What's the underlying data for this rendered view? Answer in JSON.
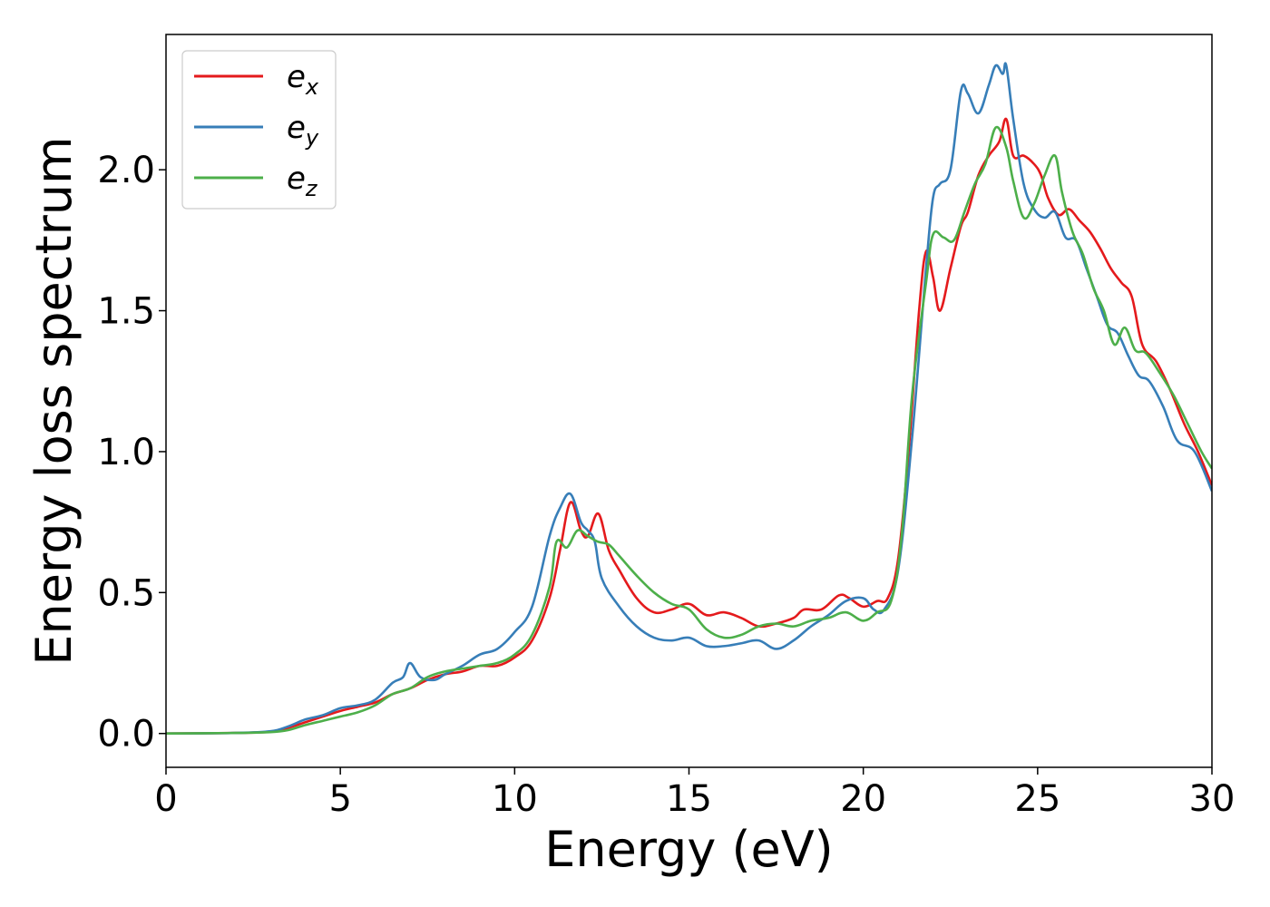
{
  "chart_data": {
    "type": "line",
    "title": "",
    "xlabel": "Energy (eV)",
    "ylabel": "Energy loss spectrum",
    "xlim": [
      0,
      30
    ],
    "ylim": [
      -0.12,
      2.48
    ],
    "xticks": [
      0,
      5,
      10,
      15,
      20,
      25,
      30
    ],
    "yticks": [
      0.0,
      0.5,
      1.0,
      1.5,
      2.0
    ],
    "xtick_labels": [
      "0",
      "5",
      "10",
      "15",
      "20",
      "25",
      "30"
    ],
    "ytick_labels": [
      "0.0",
      "0.5",
      "1.0",
      "1.5",
      "2.0"
    ],
    "grid": false,
    "legend_position": "top-left",
    "series": [
      {
        "name": "e_x",
        "label_base": "e",
        "label_sub": "x",
        "color": "#e41a1c",
        "points": [
          [
            0,
            0
          ],
          [
            2,
            0.002
          ],
          [
            3,
            0.006
          ],
          [
            3.5,
            0.02
          ],
          [
            4,
            0.04
          ],
          [
            4.5,
            0.06
          ],
          [
            5,
            0.08
          ],
          [
            5.5,
            0.095
          ],
          [
            6,
            0.11
          ],
          [
            6.5,
            0.14
          ],
          [
            7,
            0.16
          ],
          [
            7.5,
            0.19
          ],
          [
            8,
            0.21
          ],
          [
            8.5,
            0.22
          ],
          [
            9,
            0.24
          ],
          [
            9.5,
            0.24
          ],
          [
            10,
            0.27
          ],
          [
            10.5,
            0.33
          ],
          [
            11,
            0.48
          ],
          [
            11.3,
            0.65
          ],
          [
            11.6,
            0.82
          ],
          [
            11.9,
            0.72
          ],
          [
            12.1,
            0.7
          ],
          [
            12.4,
            0.78
          ],
          [
            12.7,
            0.65
          ],
          [
            13,
            0.58
          ],
          [
            13.5,
            0.48
          ],
          [
            14,
            0.43
          ],
          [
            14.5,
            0.44
          ],
          [
            15,
            0.46
          ],
          [
            15.5,
            0.42
          ],
          [
            16,
            0.43
          ],
          [
            16.5,
            0.41
          ],
          [
            17,
            0.38
          ],
          [
            17.5,
            0.39
          ],
          [
            18,
            0.41
          ],
          [
            18.3,
            0.44
          ],
          [
            18.8,
            0.44
          ],
          [
            19.3,
            0.49
          ],
          [
            19.6,
            0.48
          ],
          [
            20,
            0.45
          ],
          [
            20.4,
            0.47
          ],
          [
            20.7,
            0.48
          ],
          [
            21,
            0.62
          ],
          [
            21.3,
            1.0
          ],
          [
            21.6,
            1.5
          ],
          [
            21.8,
            1.71
          ],
          [
            22,
            1.62
          ],
          [
            22.2,
            1.5
          ],
          [
            22.5,
            1.65
          ],
          [
            22.8,
            1.8
          ],
          [
            23,
            1.85
          ],
          [
            23.3,
            1.98
          ],
          [
            23.6,
            2.05
          ],
          [
            23.9,
            2.1
          ],
          [
            24.1,
            2.18
          ],
          [
            24.3,
            2.05
          ],
          [
            24.6,
            2.05
          ],
          [
            24.9,
            2.02
          ],
          [
            25.1,
            1.98
          ],
          [
            25.3,
            1.9
          ],
          [
            25.6,
            1.84
          ],
          [
            25.9,
            1.86
          ],
          [
            26.2,
            1.82
          ],
          [
            26.5,
            1.78
          ],
          [
            26.8,
            1.72
          ],
          [
            27.1,
            1.65
          ],
          [
            27.4,
            1.6
          ],
          [
            27.7,
            1.55
          ],
          [
            28,
            1.38
          ],
          [
            28.4,
            1.32
          ],
          [
            28.8,
            1.22
          ],
          [
            29.2,
            1.1
          ],
          [
            29.6,
            1.0
          ],
          [
            30,
            0.88
          ]
        ]
      },
      {
        "name": "e_y",
        "label_base": "e",
        "label_sub": "y",
        "color": "#377eb8",
        "points": [
          [
            0,
            0
          ],
          [
            2,
            0.002
          ],
          [
            3,
            0.008
          ],
          [
            3.5,
            0.025
          ],
          [
            4,
            0.05
          ],
          [
            4.5,
            0.065
          ],
          [
            5,
            0.09
          ],
          [
            5.5,
            0.1
          ],
          [
            6,
            0.12
          ],
          [
            6.5,
            0.18
          ],
          [
            6.8,
            0.2
          ],
          [
            7,
            0.25
          ],
          [
            7.3,
            0.2
          ],
          [
            7.7,
            0.19
          ],
          [
            8,
            0.21
          ],
          [
            8.5,
            0.24
          ],
          [
            9,
            0.28
          ],
          [
            9.5,
            0.3
          ],
          [
            10,
            0.36
          ],
          [
            10.5,
            0.45
          ],
          [
            11,
            0.7
          ],
          [
            11.3,
            0.8
          ],
          [
            11.6,
            0.85
          ],
          [
            11.9,
            0.75
          ],
          [
            12.1,
            0.72
          ],
          [
            12.3,
            0.68
          ],
          [
            12.5,
            0.55
          ],
          [
            13,
            0.45
          ],
          [
            13.5,
            0.38
          ],
          [
            14,
            0.34
          ],
          [
            14.5,
            0.33
          ],
          [
            15,
            0.34
          ],
          [
            15.5,
            0.31
          ],
          [
            16,
            0.31
          ],
          [
            16.5,
            0.32
          ],
          [
            17,
            0.33
          ],
          [
            17.5,
            0.3
          ],
          [
            18,
            0.33
          ],
          [
            18.5,
            0.38
          ],
          [
            19,
            0.42
          ],
          [
            19.5,
            0.47
          ],
          [
            20,
            0.48
          ],
          [
            20.3,
            0.44
          ],
          [
            20.6,
            0.44
          ],
          [
            21,
            0.58
          ],
          [
            21.4,
            1.05
          ],
          [
            21.8,
            1.65
          ],
          [
            22,
            1.9
          ],
          [
            22.2,
            1.95
          ],
          [
            22.5,
            2.0
          ],
          [
            22.8,
            2.28
          ],
          [
            23,
            2.27
          ],
          [
            23.3,
            2.2
          ],
          [
            23.6,
            2.3
          ],
          [
            23.8,
            2.37
          ],
          [
            24,
            2.34
          ],
          [
            24.1,
            2.37
          ],
          [
            24.3,
            2.18
          ],
          [
            24.6,
            1.95
          ],
          [
            24.9,
            1.86
          ],
          [
            25.2,
            1.83
          ],
          [
            25.5,
            1.85
          ],
          [
            25.8,
            1.76
          ],
          [
            26.1,
            1.75
          ],
          [
            26.4,
            1.65
          ],
          [
            26.7,
            1.55
          ],
          [
            27,
            1.45
          ],
          [
            27.3,
            1.42
          ],
          [
            27.6,
            1.34
          ],
          [
            27.9,
            1.27
          ],
          [
            28.2,
            1.25
          ],
          [
            28.6,
            1.16
          ],
          [
            29,
            1.04
          ],
          [
            29.5,
            1.0
          ],
          [
            30,
            0.86
          ]
        ]
      },
      {
        "name": "e_z",
        "label_base": "e",
        "label_sub": "z",
        "color": "#4daf4a",
        "points": [
          [
            0,
            0
          ],
          [
            2,
            0.002
          ],
          [
            3,
            0.005
          ],
          [
            3.5,
            0.012
          ],
          [
            4,
            0.03
          ],
          [
            4.5,
            0.045
          ],
          [
            5,
            0.06
          ],
          [
            5.5,
            0.075
          ],
          [
            6,
            0.1
          ],
          [
            6.5,
            0.14
          ],
          [
            7,
            0.16
          ],
          [
            7.5,
            0.2
          ],
          [
            8,
            0.22
          ],
          [
            8.5,
            0.23
          ],
          [
            9,
            0.24
          ],
          [
            9.5,
            0.25
          ],
          [
            10,
            0.28
          ],
          [
            10.5,
            0.35
          ],
          [
            11,
            0.52
          ],
          [
            11.2,
            0.68
          ],
          [
            11.5,
            0.66
          ],
          [
            11.8,
            0.72
          ],
          [
            12.1,
            0.7
          ],
          [
            12.4,
            0.68
          ],
          [
            12.7,
            0.67
          ],
          [
            13,
            0.63
          ],
          [
            13.5,
            0.56
          ],
          [
            14,
            0.5
          ],
          [
            14.5,
            0.46
          ],
          [
            15,
            0.44
          ],
          [
            15.5,
            0.37
          ],
          [
            16,
            0.34
          ],
          [
            16.5,
            0.35
          ],
          [
            17,
            0.38
          ],
          [
            17.5,
            0.39
          ],
          [
            18,
            0.38
          ],
          [
            18.5,
            0.4
          ],
          [
            19,
            0.41
          ],
          [
            19.5,
            0.43
          ],
          [
            20,
            0.4
          ],
          [
            20.4,
            0.43
          ],
          [
            20.8,
            0.47
          ],
          [
            21.1,
            0.7
          ],
          [
            21.4,
            1.2
          ],
          [
            21.8,
            1.6
          ],
          [
            22,
            1.77
          ],
          [
            22.3,
            1.76
          ],
          [
            22.6,
            1.75
          ],
          [
            22.9,
            1.85
          ],
          [
            23.2,
            1.95
          ],
          [
            23.5,
            2.02
          ],
          [
            23.8,
            2.15
          ],
          [
            24.1,
            2.08
          ],
          [
            24.3,
            1.96
          ],
          [
            24.6,
            1.83
          ],
          [
            24.9,
            1.88
          ],
          [
            25.2,
            1.98
          ],
          [
            25.5,
            2.05
          ],
          [
            25.7,
            1.92
          ],
          [
            26,
            1.78
          ],
          [
            26.3,
            1.7
          ],
          [
            26.6,
            1.58
          ],
          [
            26.9,
            1.5
          ],
          [
            27.2,
            1.38
          ],
          [
            27.5,
            1.44
          ],
          [
            27.8,
            1.36
          ],
          [
            28.1,
            1.35
          ],
          [
            28.5,
            1.28
          ],
          [
            28.9,
            1.2
          ],
          [
            29.3,
            1.1
          ],
          [
            29.7,
            1.0
          ],
          [
            30,
            0.94
          ]
        ]
      }
    ]
  }
}
